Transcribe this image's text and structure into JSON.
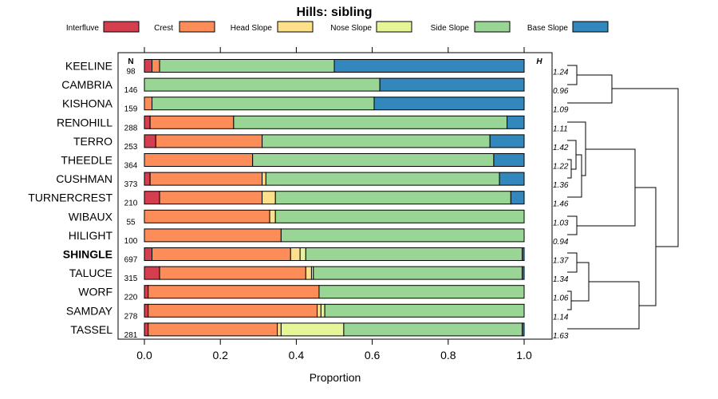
{
  "chart_data": {
    "type": "bar",
    "orientation": "horizontal",
    "stacked": true,
    "title": "Hills: sibling",
    "xlabel": "Proportion",
    "ylabel": "",
    "xlim": [
      0,
      1
    ],
    "x_ticks": [
      "0.0",
      "0.2",
      "0.4",
      "0.6",
      "0.8",
      "1.0"
    ],
    "x_tick_values": [
      0,
      0.2,
      0.4,
      0.6,
      0.8,
      1.0
    ],
    "n_header": "N",
    "h_header": "H",
    "legend_position": "top",
    "series": [
      {
        "name": "Interfluve",
        "color": "#d53e4f"
      },
      {
        "name": "Crest",
        "color": "#fc8d59"
      },
      {
        "name": "Head Slope",
        "color": "#fee08b"
      },
      {
        "name": "Nose Slope",
        "color": "#e6f598"
      },
      {
        "name": "Side Slope",
        "color": "#99d594"
      },
      {
        "name": "Base Slope",
        "color": "#3288bd"
      }
    ],
    "categories": [
      "KEELINE",
      "CAMBRIA",
      "KISHONA",
      "RENOHILL",
      "TERRO",
      "THEEDLE",
      "CUSHMAN",
      "TURNERCREST",
      "WIBAUX",
      "HILIGHT",
      "SHINGLE",
      "TALUCE",
      "WORF",
      "SAMDAY",
      "TASSEL"
    ],
    "highlight": "SHINGLE",
    "n": [
      "98",
      "146",
      "159",
      "288",
      "253",
      "364",
      "373",
      "210",
      "55",
      "100",
      "697",
      "315",
      "220",
      "278",
      "281"
    ],
    "h": [
      "1.24",
      "0.96",
      "1.09",
      "1.11",
      "1.42",
      "1.22",
      "1.36",
      "1.46",
      "1.03",
      "0.94",
      "1.37",
      "1.34",
      "1.06",
      "1.14",
      "1.63"
    ],
    "values": [
      [
        0.02,
        0.02,
        0.0,
        0.0,
        0.46,
        0.5
      ],
      [
        0.0,
        0.0,
        0.0,
        0.0,
        0.62,
        0.38
      ],
      [
        0.0,
        0.02,
        0.0,
        0.0,
        0.585,
        0.395
      ],
      [
        0.015,
        0.22,
        0.0,
        0.0,
        0.72,
        0.045
      ],
      [
        0.03,
        0.28,
        0.0,
        0.0,
        0.6,
        0.09
      ],
      [
        0.0,
        0.285,
        0.0,
        0.0,
        0.635,
        0.08
      ],
      [
        0.015,
        0.295,
        0.01,
        0.0,
        0.615,
        0.065
      ],
      [
        0.04,
        0.27,
        0.035,
        0.0,
        0.62,
        0.035
      ],
      [
        0.0,
        0.33,
        0.015,
        0.0,
        0.655,
        0.0
      ],
      [
        0.0,
        0.36,
        0.0,
        0.0,
        0.64,
        0.0
      ],
      [
        0.02,
        0.365,
        0.025,
        0.015,
        0.57,
        0.005
      ],
      [
        0.04,
        0.385,
        0.015,
        0.005,
        0.55,
        0.005
      ],
      [
        0.01,
        0.45,
        0.0,
        0.0,
        0.54,
        0.0
      ],
      [
        0.01,
        0.445,
        0.01,
        0.01,
        0.525,
        0.0
      ],
      [
        0.01,
        0.34,
        0.01,
        0.165,
        0.47,
        0.005
      ]
    ]
  }
}
